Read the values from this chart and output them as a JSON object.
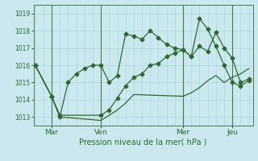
{
  "xlabel": "Pression niveau de la mer( hPa )",
  "bg_color": "#cce8ef",
  "grid_color": "#b0d8e0",
  "line_color": "#2d6a2d",
  "ylim": [
    1012.5,
    1019.5
  ],
  "yticks": [
    1013,
    1014,
    1015,
    1016,
    1017,
    1018,
    1019
  ],
  "xtick_labels": [
    "Mar",
    "Ven",
    "Mer",
    "Jeu"
  ],
  "xtick_positions": [
    2,
    8,
    18,
    24
  ],
  "vline_x": [
    2,
    8,
    18,
    24
  ],
  "series1_x": [
    0,
    2,
    3,
    4,
    5,
    6,
    7,
    8,
    9,
    10,
    11,
    12,
    13,
    14,
    15,
    16,
    17,
    18,
    19,
    20,
    21,
    22,
    23,
    24,
    25,
    26
  ],
  "series1_y": [
    1016.0,
    1014.2,
    1013.0,
    1015.0,
    1015.5,
    1015.8,
    1016.0,
    1016.0,
    1015.0,
    1015.4,
    1017.8,
    1017.7,
    1017.5,
    1018.0,
    1017.6,
    1017.2,
    1017.0,
    1016.9,
    1016.5,
    1018.7,
    1018.1,
    1017.1,
    1016.0,
    1015.0,
    1014.8,
    1015.1
  ],
  "series2_x": [
    0,
    2,
    3,
    8,
    9,
    10,
    11,
    12,
    13,
    14,
    15,
    16,
    17,
    18,
    19,
    20,
    21,
    22,
    23,
    24,
    25,
    26
  ],
  "series2_y": [
    1016.0,
    1014.2,
    1013.1,
    1013.1,
    1013.4,
    1014.1,
    1014.8,
    1015.3,
    1015.5,
    1016.0,
    1016.1,
    1016.5,
    1016.7,
    1016.9,
    1016.5,
    1017.1,
    1016.8,
    1017.9,
    1017.0,
    1016.4,
    1015.0,
    1015.2
  ],
  "series3_x": [
    0,
    2,
    3,
    8,
    9,
    10,
    11,
    12,
    18,
    19,
    20,
    21,
    22,
    23,
    24,
    25,
    26
  ],
  "series3_y": [
    1016.0,
    1014.2,
    1013.0,
    1012.8,
    1013.1,
    1013.4,
    1013.8,
    1014.3,
    1014.2,
    1014.4,
    1014.7,
    1015.1,
    1015.4,
    1015.0,
    1015.3,
    1015.5,
    1015.8
  ]
}
